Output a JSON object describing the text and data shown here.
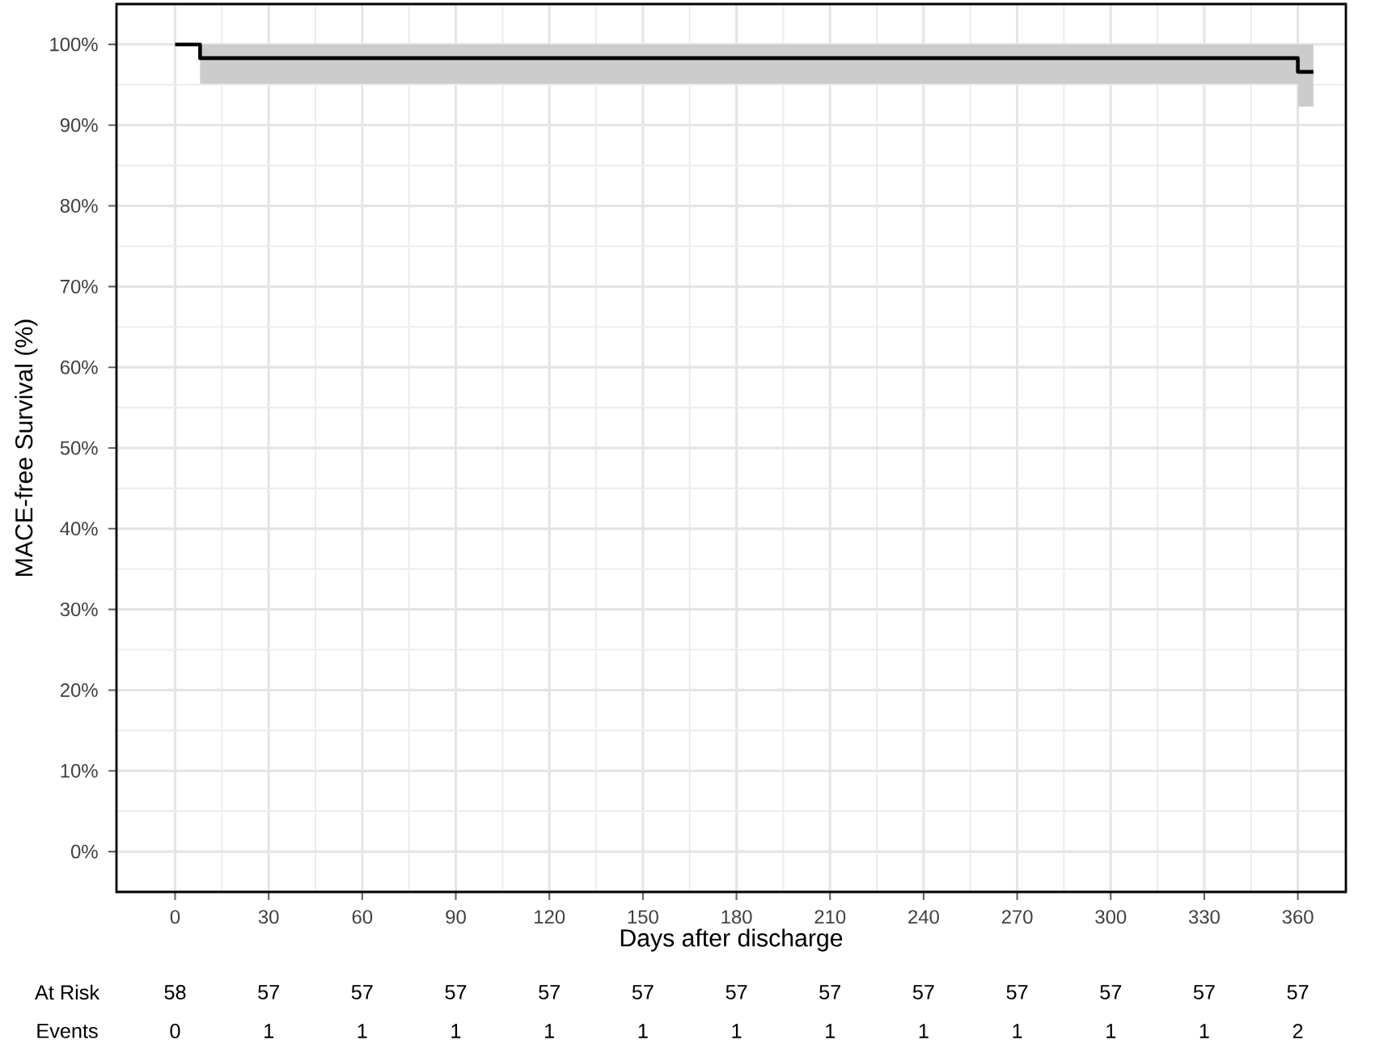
{
  "chart_data": {
    "type": "step",
    "xlabel": "Days after discharge",
    "ylabel": "MACE-free Survival (%)",
    "series": [
      {
        "color": "#000000",
        "x": [
          0,
          8,
          360,
          365
        ],
        "values": [
          100,
          98.3,
          96.6,
          96.6
        ],
        "lower": [
          null,
          95.1,
          92.3,
          92.3
        ],
        "upper": [
          null,
          100,
          100,
          100
        ]
      }
    ],
    "xlim": [
      -18.8,
      375.4
    ],
    "ylim": [
      -5,
      105
    ],
    "xticks": [
      0,
      30,
      60,
      90,
      120,
      150,
      180,
      210,
      240,
      270,
      300,
      330,
      360
    ],
    "yticks": [
      {
        "value": 0,
        "label": "0%"
      },
      {
        "value": 10,
        "label": "10%"
      },
      {
        "value": 20,
        "label": "20%"
      },
      {
        "value": 30,
        "label": "30%"
      },
      {
        "value": 40,
        "label": "40%"
      },
      {
        "value": 50,
        "label": "50%"
      },
      {
        "value": 60,
        "label": "60%"
      },
      {
        "value": 70,
        "label": "70%"
      },
      {
        "value": 80,
        "label": "80%"
      },
      {
        "value": 90,
        "label": "90%"
      },
      {
        "value": 100,
        "label": "100%"
      }
    ],
    "grid": true,
    "marker": "none",
    "line_style": "solid",
    "annotations": [
      "At Risk",
      "58",
      "57",
      "57",
      "57",
      "57",
      "57",
      "57",
      "57",
      "57",
      "57",
      "57",
      "57",
      "57",
      "Events",
      "0",
      "1",
      "1",
      "1",
      "1",
      "1",
      "1",
      "1",
      "1",
      "1",
      "1",
      "1",
      "2"
    ]
  }
}
